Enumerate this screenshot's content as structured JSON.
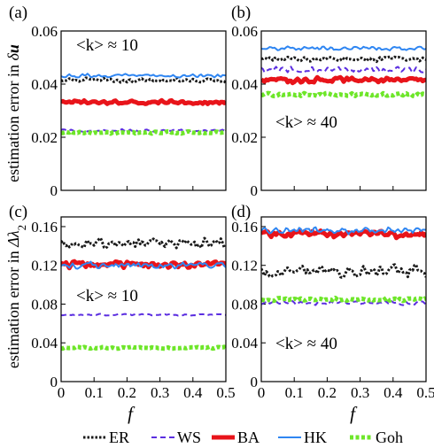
{
  "figure": {
    "legend": [
      {
        "name": "ER",
        "color": "#1a1a1a",
        "dash": "dotted",
        "width": 3
      },
      {
        "name": "WS",
        "color": "#5b2ee0",
        "dash": "dashed",
        "width": 2
      },
      {
        "name": "BA",
        "color": "#e8141a",
        "dash": "solid",
        "width": 5
      },
      {
        "name": "HK",
        "color": "#2f86f2",
        "dash": "solid",
        "width": 2
      },
      {
        "name": "Goh",
        "color": "#6ee62a",
        "dash": "dotted-thick",
        "width": 5
      }
    ],
    "ylabel_top": {
      "pre": "estimation error in ",
      "sym": "δ",
      "bold": "u"
    },
    "ylabel_bottom": {
      "pre": "estimation error in ",
      "sym": "Δλ",
      "sub": "2"
    },
    "xlabel": "f"
  },
  "chart_data": [
    {
      "panel": "(a)",
      "type": "line",
      "annotation": "<k> ≈ 10",
      "xlim": [
        0,
        0.5
      ],
      "ylim": [
        0,
        0.06
      ],
      "xticks": [],
      "yticks": [
        "0",
        "0.02",
        "0.04",
        "0.06"
      ],
      "series": [
        {
          "name": "ER",
          "mean": 0.0415,
          "noise": 0.001
        },
        {
          "name": "WS",
          "mean": 0.0225,
          "noise": 0.0006
        },
        {
          "name": "BA",
          "mean": 0.0332,
          "noise": 0.0008
        },
        {
          "name": "HK",
          "mean": 0.0432,
          "noise": 0.0008
        },
        {
          "name": "Goh",
          "mean": 0.0218,
          "noise": 0.0005
        }
      ]
    },
    {
      "panel": "(b)",
      "type": "line",
      "annotation": "<k> ≈ 40",
      "xlim": [
        0,
        0.5
      ],
      "ylim": [
        0,
        0.06
      ],
      "xticks": [],
      "yticks": [
        "0",
        "0.02",
        "0.04",
        "0.06"
      ],
      "series": [
        {
          "name": "ER",
          "mean": 0.0495,
          "noise": 0.0011
        },
        {
          "name": "WS",
          "mean": 0.0455,
          "noise": 0.0014
        },
        {
          "name": "BA",
          "mean": 0.0415,
          "noise": 0.0013
        },
        {
          "name": "HK",
          "mean": 0.0535,
          "noise": 0.0009
        },
        {
          "name": "Goh",
          "mean": 0.036,
          "noise": 0.0007
        }
      ]
    },
    {
      "panel": "(c)",
      "type": "line",
      "annotation": "<k> ≈ 10",
      "xlim": [
        0,
        0.5
      ],
      "ylim": [
        0,
        0.17
      ],
      "xticks": [
        "0",
        "0.1",
        "0.2",
        "0.3",
        "0.4",
        "0.5"
      ],
      "yticks": [
        "0",
        "0.04",
        "0.08",
        "0.12",
        "0.16"
      ],
      "series": [
        {
          "name": "ER",
          "mean": 0.143,
          "noise": 0.006
        },
        {
          "name": "WS",
          "mean": 0.069,
          "noise": 0.001
        },
        {
          "name": "BA",
          "mean": 0.121,
          "noise": 0.004
        },
        {
          "name": "HK",
          "mean": 0.12,
          "noise": 0.004
        },
        {
          "name": "Goh",
          "mean": 0.035,
          "noise": 0.0012
        }
      ]
    },
    {
      "panel": "(d)",
      "type": "line",
      "annotation": "<k> ≈ 40",
      "xlim": [
        0,
        0.5
      ],
      "ylim": [
        0,
        0.17
      ],
      "xticks": [
        "0",
        "0.1",
        "0.2",
        "0.3",
        "0.4",
        "0.5"
      ],
      "yticks": [
        "0",
        "0.04",
        "0.08",
        "0.12",
        "0.16"
      ],
      "series": [
        {
          "name": "ER",
          "mean": 0.115,
          "noise": 0.008
        },
        {
          "name": "WS",
          "mean": 0.081,
          "noise": 0.003
        },
        {
          "name": "BA",
          "mean": 0.152,
          "noise": 0.004
        },
        {
          "name": "HK",
          "mean": 0.156,
          "noise": 0.004
        },
        {
          "name": "Goh",
          "mean": 0.085,
          "noise": 0.002
        }
      ]
    }
  ]
}
